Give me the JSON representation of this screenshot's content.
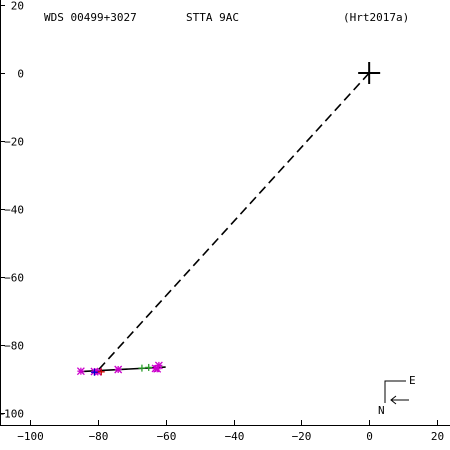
{
  "header": {
    "star_id": "WDS 00499+3027",
    "discoverer": "STTA  9AC",
    "reference": "(Hrt2017a)"
  },
  "compass": {
    "east_label": "E",
    "north_label": "N"
  },
  "chart_data": {
    "type": "scatter",
    "xlim": [
      -100,
      20
    ],
    "ylim": [
      -100,
      20
    ],
    "x_ticks": [
      -100,
      -80,
      -60,
      -40,
      -20,
      0,
      20
    ],
    "y_ticks": [
      20,
      0,
      -20,
      -40,
      -60,
      -80,
      -100
    ],
    "x_tick_labels": [
      "−100",
      "−80",
      "−60",
      "−40",
      "−20",
      "0",
      "20"
    ],
    "y_tick_labels": [
      "20",
      "0",
      "−20",
      "−40",
      "−60",
      "−80",
      "−100"
    ],
    "primary": [
      0,
      0
    ],
    "fit_line": [
      [
        -85,
        -87.8
      ],
      [
        -60,
        -86.5
      ]
    ],
    "dashed_connector": [
      [
        0,
        0
      ],
      [
        -80,
        -87.5
      ]
    ],
    "series": [
      {
        "marker": "asterisk",
        "color": "#cc00cc",
        "points": [
          [
            -85,
            -87.7
          ],
          [
            -81,
            -87.8
          ],
          [
            -80,
            -87.9
          ],
          [
            -74,
            -87.2
          ],
          [
            -63,
            -86.9
          ],
          [
            -62,
            -86.0
          ],
          [
            -62.5,
            -87.0
          ]
        ]
      },
      {
        "marker": "cross",
        "color": "#2a9d2a",
        "points": [
          [
            -67,
            -86.8
          ],
          [
            -65,
            -86.6
          ]
        ]
      },
      {
        "marker": "cross",
        "color": "#0000cc",
        "points": [
          [
            -81,
            -88.0
          ]
        ]
      },
      {
        "marker": "cross",
        "color": "#cc0000",
        "points": [
          [
            -79,
            -87.9
          ]
        ]
      }
    ]
  }
}
